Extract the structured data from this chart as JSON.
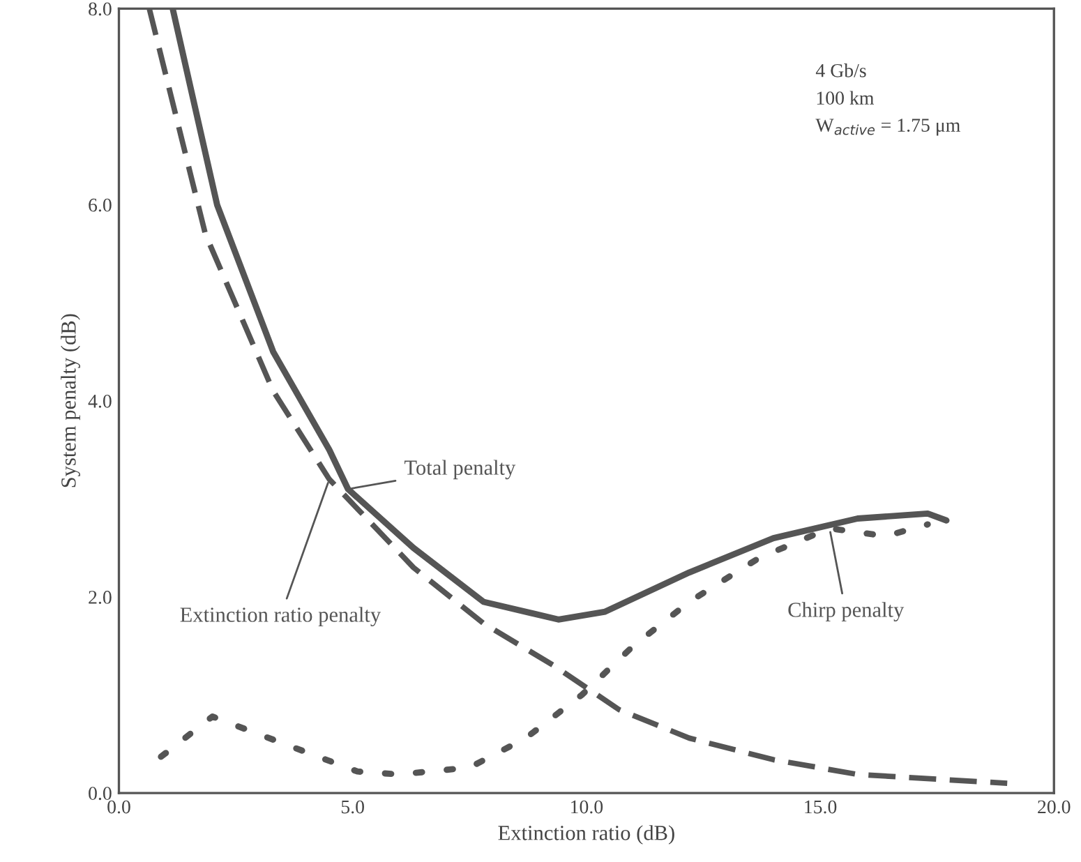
{
  "chart_data": {
    "type": "line",
    "xlabel": "Extinction ratio (dB)",
    "ylabel": "System penalty (dB)",
    "xlim": [
      0,
      20
    ],
    "ylim": [
      0,
      8
    ],
    "xticks": [
      {
        "value": 0,
        "label": "0.0"
      },
      {
        "value": 5,
        "label": "5.0"
      },
      {
        "value": 10,
        "label": "10.0"
      },
      {
        "value": 15,
        "label": "15.0"
      },
      {
        "value": 20,
        "label": "20.0"
      }
    ],
    "yticks": [
      {
        "value": 0,
        "label": "0.0"
      },
      {
        "value": 2,
        "label": "2.0"
      },
      {
        "value": 4,
        "label": "4.0"
      },
      {
        "value": 6,
        "label": "6.0"
      },
      {
        "value": 8,
        "label": "8.0"
      }
    ],
    "grid": false,
    "legend": false,
    "annotations": [
      "4 Gb/s",
      "100 km",
      "W$_{active}$ = 1.75 μm"
    ],
    "series": [
      {
        "name": "Total penalty",
        "color": "#555555",
        "line_style": "solid",
        "x": [
          1.15,
          2.1,
          3.3,
          4.5,
          4.9,
          6.3,
          7.8,
          9.4,
          10.4,
          12.2,
          14.0,
          15.8,
          17.3,
          17.7
        ],
        "values": [
          8.0,
          6.0,
          4.5,
          3.5,
          3.1,
          2.5,
          1.95,
          1.77,
          1.85,
          2.25,
          2.6,
          2.8,
          2.85,
          2.78
        ]
      },
      {
        "name": "Extinction ratio penalty",
        "color": "#555555",
        "line_style": "dashed",
        "x": [
          0.65,
          1.85,
          3.3,
          4.5,
          6.3,
          7.8,
          9.3,
          10.7,
          12.2,
          14.0,
          15.8,
          17.9,
          19.0
        ],
        "values": [
          8.0,
          5.7,
          4.1,
          3.2,
          2.3,
          1.73,
          1.3,
          0.85,
          0.56,
          0.34,
          0.19,
          0.13,
          0.1
        ]
      },
      {
        "name": "Chirp penalty",
        "color": "#555555",
        "line_style": "dotted",
        "x": [
          0.9,
          2.0,
          3.6,
          5.1,
          6.0,
          7.5,
          8.7,
          9.9,
          11.0,
          12.2,
          13.7,
          15.2,
          16.4,
          17.3
        ],
        "values": [
          0.37,
          0.78,
          0.49,
          0.22,
          0.19,
          0.26,
          0.56,
          1.0,
          1.5,
          1.95,
          2.4,
          2.7,
          2.62,
          2.74
        ]
      }
    ]
  }
}
